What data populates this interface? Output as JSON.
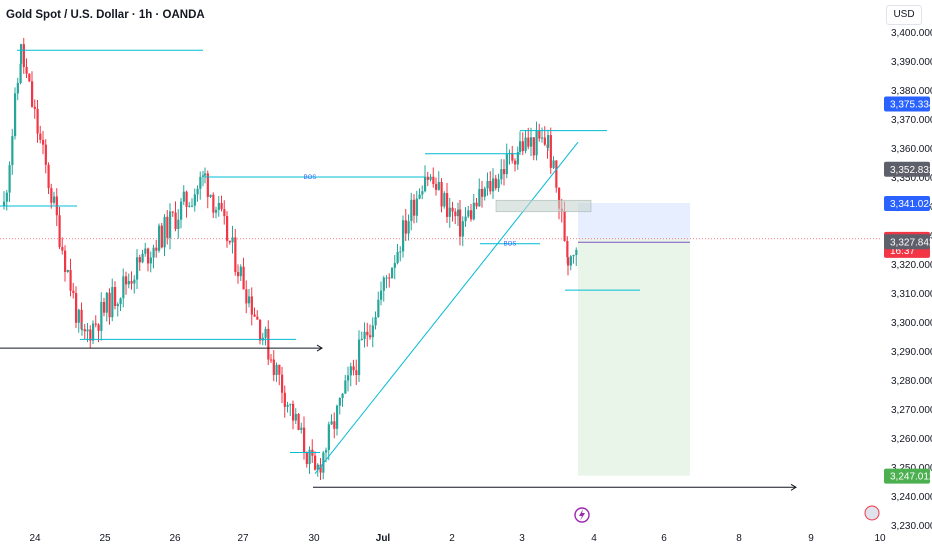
{
  "header": {
    "title": "Gold Spot / U.S. Dollar · 1h · OANDA",
    "currency": "USD"
  },
  "chart_data": {
    "type": "candlestick",
    "symbol": "Gold Spot / U.S. Dollar",
    "interval": "1h",
    "source": "OANDA",
    "ylim": [
      3227,
      3407
    ],
    "y_ticks": [
      "3,400.000",
      "3,390.000",
      "3,380.000",
      "3,370.000",
      "3,360.000",
      "3,350.000",
      "3,340.000",
      "3,330.000",
      "3,320.000",
      "3,310.000",
      "3,300.000",
      "3,290.000",
      "3,280.000",
      "3,270.000",
      "3,260.000",
      "3,250.000",
      "3,240.000",
      "3,230.000"
    ],
    "x_ticks": [
      "24",
      "25",
      "26",
      "27",
      "30",
      "Jul",
      "2",
      "3",
      "4",
      "6",
      "8",
      "9",
      "10"
    ],
    "key_points": [
      {
        "label": "high",
        "value": 3393
      },
      {
        "label": "swing-low",
        "value": 3294
      },
      {
        "label": "swing-high",
        "value": 3350
      },
      {
        "label": "low",
        "value": 3247
      },
      {
        "label": "swing-high",
        "value": 3366
      },
      {
        "label": "last",
        "value": 3328.675
      }
    ],
    "price_labels": [
      {
        "value": "3,375.334",
        "price": 3375.334,
        "color": "#2962ff",
        "style": "blue"
      },
      {
        "value": "3,352.832",
        "price": 3352.832,
        "color": "#5d606b",
        "style": "gray"
      },
      {
        "value": "3,341.024",
        "price": 3341.024,
        "color": "#2962ff",
        "style": "blue"
      },
      {
        "value": "3,328.675",
        "price": 3328.675,
        "color": "#f23645",
        "style": "red",
        "countdown": "16:37"
      },
      {
        "value": "3,327.842",
        "price": 3327.842,
        "color": "#5d606b",
        "style": "gray"
      },
      {
        "value": "3,247.012",
        "price": 3247.012,
        "color": "#4caf50",
        "style": "green"
      }
    ],
    "annotations": [
      {
        "text": "BOS",
        "price": 3350
      },
      {
        "text": "BOS",
        "price": 3327
      }
    ],
    "colors": {
      "up": "#26a69a",
      "down": "#f23645",
      "drawings": "#00bcd4",
      "arrow": "#131722",
      "stop_zone": "#dbe7ff",
      "target_zone": "#e3f3e3",
      "last_price": "#f23645"
    },
    "trade_zone": {
      "entry": 3328.675,
      "stop": 3341.024,
      "target": 3247.012
    }
  }
}
